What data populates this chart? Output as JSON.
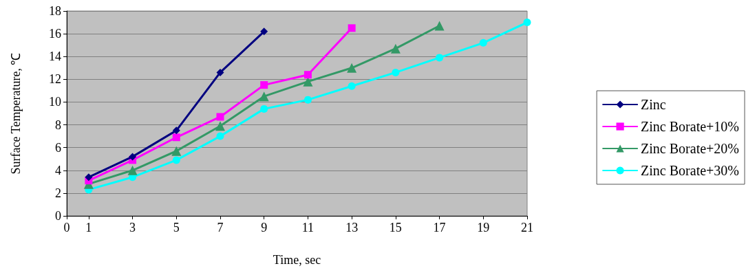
{
  "chart_data": {
    "type": "line",
    "xlabel": "Time, sec",
    "ylabel": "Surface Temperature, ℃",
    "xlim": [
      0,
      21
    ],
    "xticks": [
      0,
      1,
      3,
      5,
      7,
      9,
      11,
      13,
      15,
      17,
      19,
      21
    ],
    "ylim": [
      0,
      18
    ],
    "yticks": [
      0,
      2,
      4,
      6,
      8,
      10,
      12,
      14,
      16,
      18
    ],
    "grid": "y",
    "legend": "right",
    "line_style": "solid",
    "series": [
      {
        "name": "Zinc",
        "color": "#000080",
        "marker": "diamond",
        "x": [
          1,
          3,
          5,
          7,
          9
        ],
        "values": [
          3.4,
          5.2,
          7.5,
          12.6,
          16.2
        ]
      },
      {
        "name": "Zinc Borate+10%",
        "color": "#ff00ff",
        "marker": "square",
        "x": [
          1,
          3,
          5,
          7,
          9,
          11,
          13
        ],
        "values": [
          3.1,
          4.9,
          6.9,
          8.7,
          11.5,
          12.4,
          16.5
        ]
      },
      {
        "name": "Zinc Borate+20%",
        "color": "#339966",
        "marker": "triangle",
        "x": [
          1,
          3,
          5,
          7,
          9,
          11,
          13,
          15,
          17
        ],
        "values": [
          2.8,
          4.0,
          5.7,
          7.9,
          10.5,
          11.8,
          13.0,
          14.7,
          16.7
        ]
      },
      {
        "name": "Zinc Borate+30%",
        "color": "#00ffff",
        "marker": "circle",
        "x": [
          1,
          3,
          5,
          7,
          9,
          11,
          13,
          15,
          17,
          19,
          21
        ],
        "values": [
          2.3,
          3.4,
          4.9,
          7.0,
          9.4,
          10.2,
          11.4,
          12.6,
          13.9,
          15.2,
          17.0
        ]
      }
    ]
  }
}
